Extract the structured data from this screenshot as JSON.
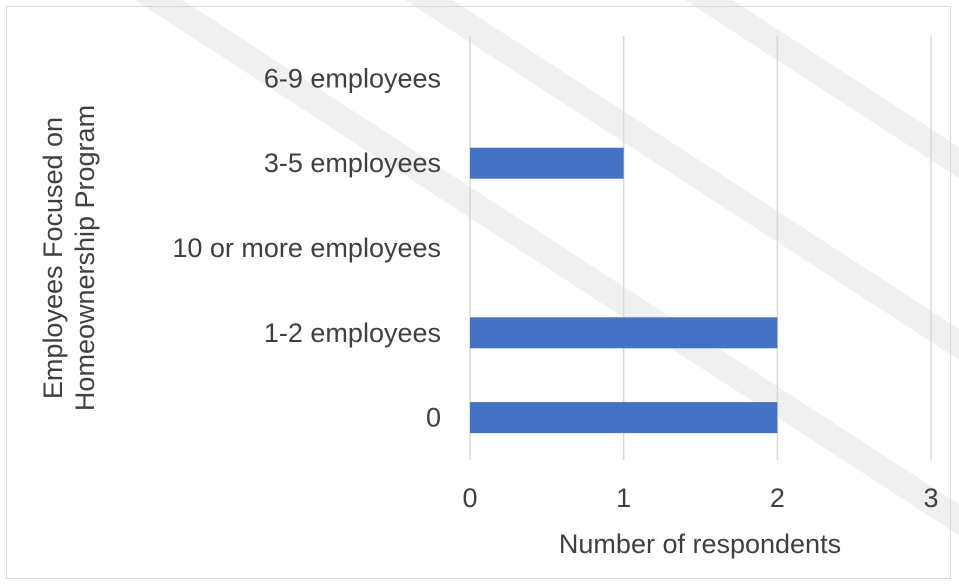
{
  "chart_data": {
    "type": "bar",
    "orientation": "horizontal",
    "categories": [
      "6-9 employees",
      "3-5 employees",
      "10 or more employees",
      "1-2 employees",
      "0"
    ],
    "values": [
      0,
      1,
      0,
      2,
      2
    ],
    "xlabel": "Number of respondents",
    "ylabel_line1": "Employees Focused on",
    "ylabel_line2": "Homeownership Program",
    "xlim": [
      0,
      3
    ],
    "xticks": [
      "0",
      "1",
      "2",
      "3"
    ],
    "grid": "vertical",
    "legend": "none",
    "bar_color": "#4472c4",
    "grid_color": "#d9d9d9"
  }
}
